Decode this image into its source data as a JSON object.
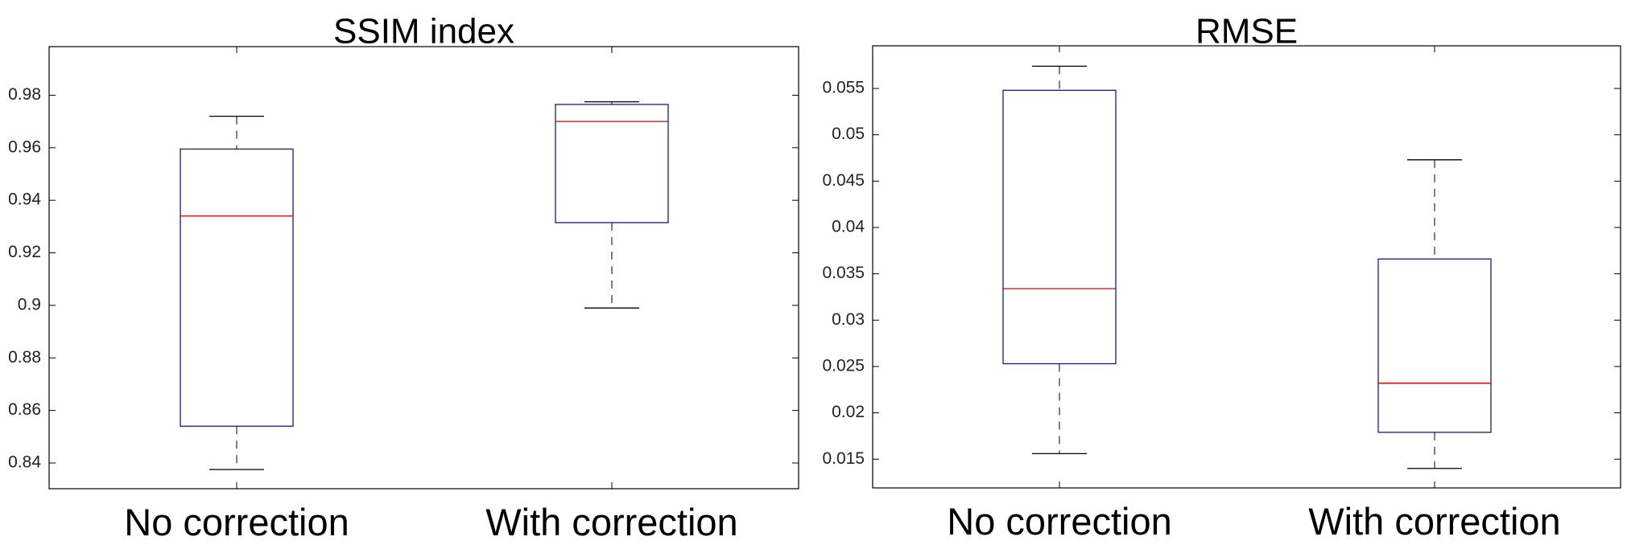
{
  "chart_data": [
    {
      "type": "box",
      "title": "SSIM index",
      "xlabel": "",
      "ylabel": "",
      "categories": [
        "No correction",
        "With correction"
      ],
      "ylim": [
        0.8302,
        0.9985
      ],
      "yticks": [
        0.84,
        0.86,
        0.88,
        0.9,
        0.92,
        0.94,
        0.96,
        0.98
      ],
      "ytick_labels": [
        "0.84",
        "0.86",
        "0.88",
        "0.9",
        "0.92",
        "0.94",
        "0.96",
        "0.98"
      ],
      "grid": false,
      "boxes": [
        {
          "name": "No correction",
          "whisker_low": 0.8375,
          "q1": 0.854,
          "median": 0.934,
          "q3": 0.9595,
          "whisker_high": 0.972
        },
        {
          "name": "With correction",
          "whisker_low": 0.899,
          "q1": 0.9315,
          "median": 0.97,
          "q3": 0.9765,
          "whisker_high": 0.9775
        }
      ]
    },
    {
      "type": "box",
      "title": "RMSE",
      "xlabel": "",
      "ylabel": "",
      "categories": [
        "No correction",
        "With correction"
      ],
      "ylim": [
        0.0119,
        0.0596
      ],
      "yticks": [
        0.015,
        0.02,
        0.025,
        0.03,
        0.035,
        0.04,
        0.045,
        0.05,
        0.055
      ],
      "ytick_labels": [
        "0.015",
        "0.02",
        "0.025",
        "0.03",
        "0.035",
        "0.04",
        "0.045",
        "0.05",
        "0.055"
      ],
      "grid": false,
      "boxes": [
        {
          "name": "No correction",
          "whisker_low": 0.0156,
          "q1": 0.0253,
          "median": 0.0334,
          "q3": 0.0548,
          "whisker_high": 0.0574
        },
        {
          "name": "With correction",
          "whisker_low": 0.014,
          "q1": 0.0179,
          "median": 0.0232,
          "q3": 0.0366,
          "whisker_high": 0.0473
        }
      ]
    }
  ],
  "colors": {
    "box": "#1a1a80",
    "median": "#cc0000",
    "whisker": "#000000",
    "axis": "#000000"
  }
}
